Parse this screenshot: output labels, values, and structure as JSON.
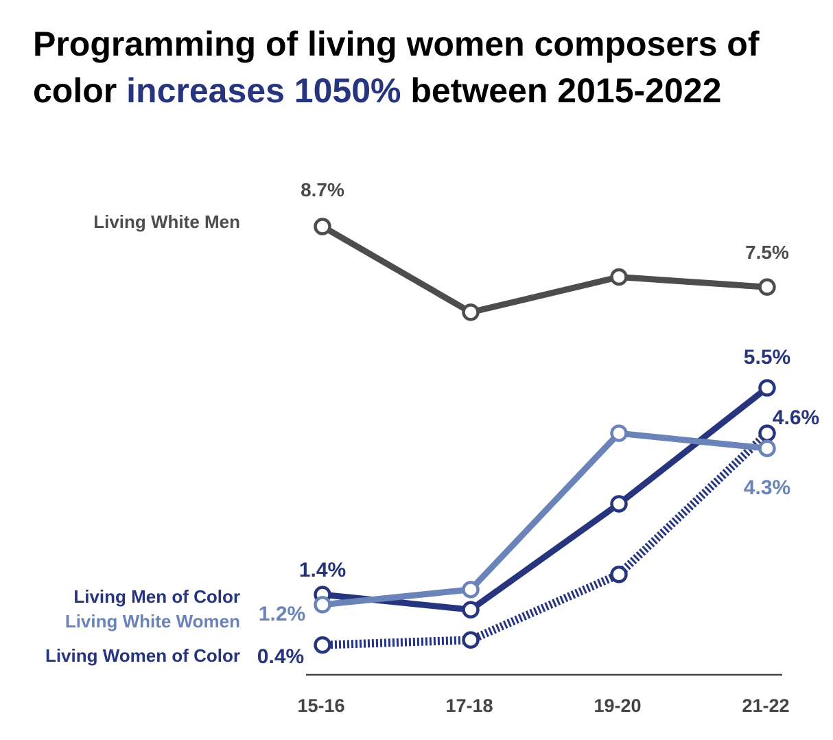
{
  "title": {
    "before": "Programming of living women composers of color ",
    "highlight": "increases 1050%",
    "after": " between 2015-2022"
  },
  "colors": {
    "accent": "#27357e",
    "men_white": "#4d4d4d",
    "men_color": "#27357e",
    "women_white": "#6a83b8",
    "women_color": "#27357e",
    "axis": "#444444"
  },
  "chart_data": {
    "type": "line",
    "title": "Programming of living women composers of color increases 1050% between 2015-2022",
    "categories": [
      "15-16",
      "17-18",
      "19-20",
      "21-22"
    ],
    "ylim": [
      0,
      9
    ],
    "grid": false,
    "series": [
      {
        "name": "Living White Men",
        "key": "men_white",
        "values": [
          8.7,
          7.0,
          7.7,
          7.5
        ],
        "start_label": "8.7%",
        "end_label": "7.5%"
      },
      {
        "name": "Living Men of Color",
        "key": "men_color",
        "values": [
          1.4,
          1.1,
          3.2,
          5.5
        ],
        "start_label": "1.4%",
        "end_label": "5.5%"
      },
      {
        "name": "Living White Women",
        "key": "women_white",
        "values": [
          1.2,
          1.5,
          4.6,
          4.3
        ],
        "start_label": "1.2%",
        "end_label": "4.3%"
      },
      {
        "name": "Living Women of Color",
        "key": "women_color",
        "dashed": true,
        "values": [
          0.4,
          0.5,
          1.8,
          4.6
        ],
        "start_label": "0.4%",
        "end_label": "4.6%"
      }
    ]
  }
}
